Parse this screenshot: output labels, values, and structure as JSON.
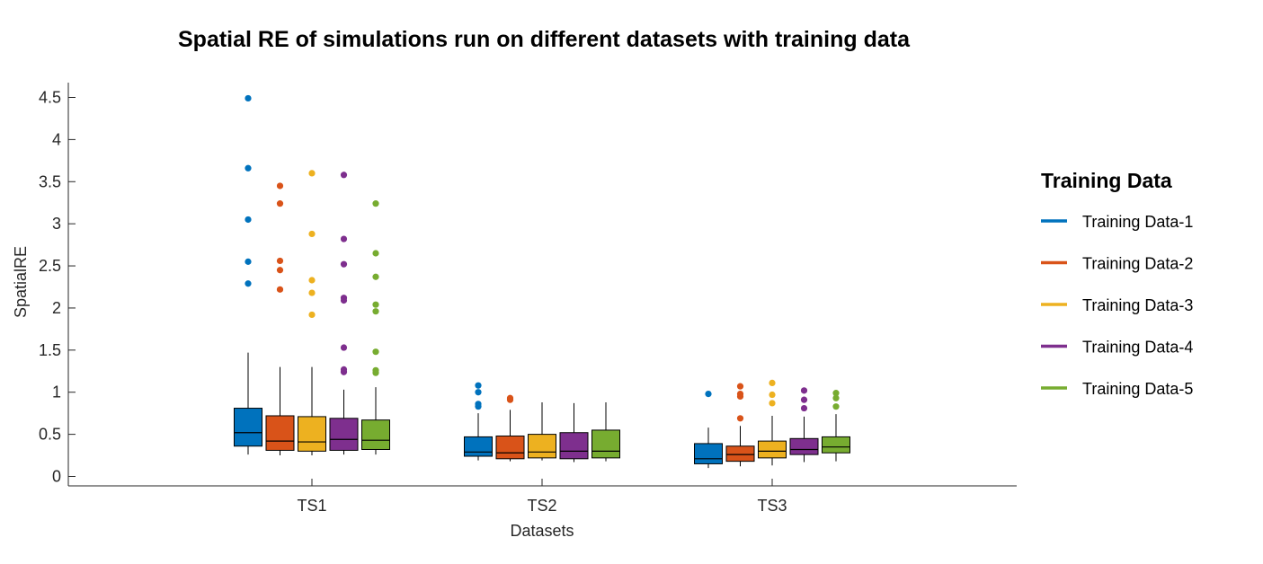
{
  "chart_data": {
    "type": "boxplot",
    "title": "Spatial RE of simulations run on different datasets with training data",
    "xlabel": "Datasets",
    "ylabel": "SpatialRE",
    "ylim": [
      -0.1,
      4.75
    ],
    "yticks": [
      0,
      0.5,
      1,
      1.5,
      2,
      2.5,
      3,
      3.5,
      4,
      4.5
    ],
    "ytick_labels": [
      "0",
      "0.5",
      "1",
      "1.5",
      "2",
      "2.5",
      "3",
      "3.5",
      "4",
      "4.5"
    ],
    "categories": [
      "TS1",
      "TS2",
      "TS3"
    ],
    "grid": false,
    "legend": {
      "title": "Training Data",
      "position": "right"
    },
    "series": [
      {
        "name": "Training Data-1",
        "color": "#0072BD",
        "boxes": [
          {
            "lw": 0.26,
            "q1": 0.36,
            "med": 0.52,
            "q3": 0.81,
            "uw": 1.47,
            "outliers": [
              2.29,
              2.55,
              3.05,
              3.66,
              4.49
            ]
          },
          {
            "lw": 0.19,
            "q1": 0.24,
            "med": 0.29,
            "q3": 0.47,
            "uw": 0.75,
            "outliers": [
              0.83,
              0.86,
              1.0,
              1.08
            ]
          },
          {
            "lw": 0.1,
            "q1": 0.15,
            "med": 0.21,
            "q3": 0.39,
            "uw": 0.58,
            "outliers": [
              0.98
            ]
          }
        ]
      },
      {
        "name": "Training Data-2",
        "color": "#D95319",
        "boxes": [
          {
            "lw": 0.25,
            "q1": 0.31,
            "med": 0.42,
            "q3": 0.72,
            "uw": 1.3,
            "outliers": [
              2.22,
              2.45,
              2.56,
              3.24,
              3.45
            ]
          },
          {
            "lw": 0.18,
            "q1": 0.21,
            "med": 0.28,
            "q3": 0.48,
            "uw": 0.79,
            "outliers": [
              0.91,
              0.93
            ]
          },
          {
            "lw": 0.12,
            "q1": 0.18,
            "med": 0.26,
            "q3": 0.36,
            "uw": 0.6,
            "outliers": [
              0.69,
              0.95,
              0.98,
              1.07
            ]
          }
        ]
      },
      {
        "name": "Training Data-3",
        "color": "#EDB120",
        "boxes": [
          {
            "lw": 0.25,
            "q1": 0.3,
            "med": 0.41,
            "q3": 0.71,
            "uw": 1.3,
            "outliers": [
              1.92,
              2.18,
              2.33,
              2.88,
              3.6
            ]
          },
          {
            "lw": 0.19,
            "q1": 0.22,
            "med": 0.29,
            "q3": 0.5,
            "uw": 0.88,
            "outliers": []
          },
          {
            "lw": 0.13,
            "q1": 0.22,
            "med": 0.3,
            "q3": 0.42,
            "uw": 0.72,
            "outliers": [
              0.87,
              0.97,
              1.11
            ]
          }
        ]
      },
      {
        "name": "Training Data-4",
        "color": "#7E2F8E",
        "boxes": [
          {
            "lw": 0.26,
            "q1": 0.31,
            "med": 0.44,
            "q3": 0.69,
            "uw": 1.03,
            "outliers": [
              1.24,
              1.27,
              1.53,
              2.09,
              2.12,
              2.52,
              2.82,
              3.58
            ]
          },
          {
            "lw": 0.17,
            "q1": 0.21,
            "med": 0.3,
            "q3": 0.52,
            "uw": 0.87,
            "outliers": []
          },
          {
            "lw": 0.17,
            "q1": 0.26,
            "med": 0.32,
            "q3": 0.45,
            "uw": 0.71,
            "outliers": [
              0.81,
              0.91,
              1.02
            ]
          }
        ]
      },
      {
        "name": "Training Data-5",
        "color": "#77AC30",
        "boxes": [
          {
            "lw": 0.26,
            "q1": 0.32,
            "med": 0.43,
            "q3": 0.67,
            "uw": 1.06,
            "outliers": [
              1.23,
              1.26,
              1.48,
              1.96,
              2.04,
              2.37,
              2.65,
              3.24
            ]
          },
          {
            "lw": 0.18,
            "q1": 0.22,
            "med": 0.3,
            "q3": 0.55,
            "uw": 0.88,
            "outliers": []
          },
          {
            "lw": 0.18,
            "q1": 0.28,
            "med": 0.35,
            "q3": 0.47,
            "uw": 0.74,
            "outliers": [
              0.83,
              0.93,
              0.99
            ]
          }
        ]
      }
    ]
  }
}
